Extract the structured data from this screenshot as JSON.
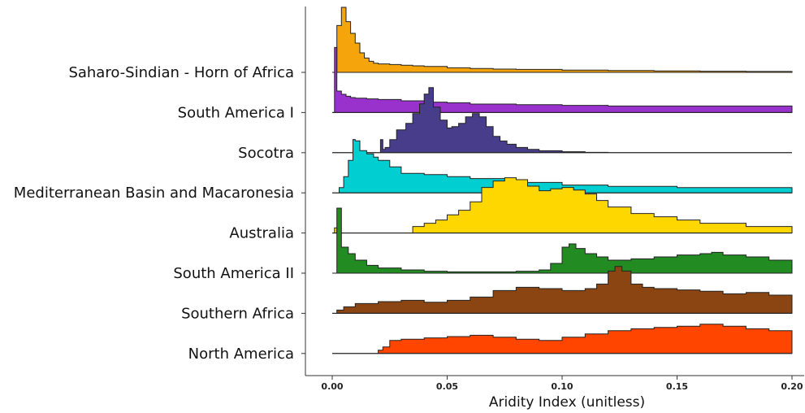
{
  "chart_data": {
    "type": "ridgeline",
    "title": "",
    "xlabel": "Aridity Index (unitless)",
    "ylabel": "",
    "xlim": [
      0.0,
      0.2
    ],
    "x_ticks": [
      {
        "value": 0.0,
        "label": "0.00"
      },
      {
        "value": 0.05,
        "label": "0.05"
      },
      {
        "value": 0.1,
        "label": "0.10"
      },
      {
        "value": 0.15,
        "label": "0.15"
      },
      {
        "value": 0.2,
        "label": "0.20"
      }
    ],
    "grid": false,
    "legend": "none",
    "series": [
      {
        "name": "Saharo-Sindian - Horn of Africa",
        "color": "#F5A40B",
        "x": [
          0.0,
          0.002,
          0.004,
          0.006,
          0.008,
          0.01,
          0.012,
          0.014,
          0.016,
          0.018,
          0.02,
          0.025,
          0.03,
          0.035,
          0.04,
          0.05,
          0.06,
          0.07,
          0.08,
          0.1,
          0.12,
          0.14,
          0.16,
          0.18,
          0.2
        ],
        "y": [
          0.0,
          0.72,
          1.0,
          0.78,
          0.6,
          0.45,
          0.3,
          0.22,
          0.17,
          0.14,
          0.13,
          0.12,
          0.11,
          0.1,
          0.09,
          0.07,
          0.06,
          0.05,
          0.045,
          0.035,
          0.028,
          0.022,
          0.018,
          0.014,
          0.012
        ]
      },
      {
        "name": "South America I",
        "color": "#9932CC",
        "x": [
          0.0,
          0.001,
          0.002,
          0.004,
          0.006,
          0.008,
          0.01,
          0.015,
          0.02,
          0.03,
          0.04,
          0.05,
          0.06,
          0.08,
          0.1,
          0.12,
          0.14,
          0.16,
          0.18,
          0.2
        ],
        "y": [
          0.0,
          1.0,
          0.33,
          0.28,
          0.25,
          0.23,
          0.22,
          0.21,
          0.2,
          0.18,
          0.16,
          0.15,
          0.13,
          0.12,
          0.11,
          0.1,
          0.1,
          0.1,
          0.1,
          0.1
        ]
      },
      {
        "name": "Socotra",
        "color": "#483D8B",
        "x": [
          0.0,
          0.02,
          0.021,
          0.022,
          0.023,
          0.025,
          0.028,
          0.032,
          0.035,
          0.038,
          0.04,
          0.042,
          0.044,
          0.047,
          0.05,
          0.052,
          0.055,
          0.058,
          0.061,
          0.064,
          0.067,
          0.07,
          0.073,
          0.076,
          0.08,
          0.085,
          0.09,
          0.1,
          0.11,
          0.12,
          0.2
        ],
        "y": [
          0.0,
          0.0,
          0.2,
          0.05,
          0.08,
          0.2,
          0.35,
          0.45,
          0.6,
          0.75,
          0.9,
          1.0,
          0.7,
          0.5,
          0.38,
          0.4,
          0.45,
          0.55,
          0.6,
          0.55,
          0.4,
          0.25,
          0.18,
          0.13,
          0.08,
          0.05,
          0.03,
          0.015,
          0.005,
          0.0,
          0.0
        ]
      },
      {
        "name": "Mediterranean Basin and Macaronesia",
        "color": "#00CED1",
        "x": [
          0.0,
          0.003,
          0.005,
          0.007,
          0.009,
          0.01,
          0.012,
          0.015,
          0.018,
          0.02,
          0.025,
          0.03,
          0.04,
          0.05,
          0.06,
          0.08,
          0.1,
          0.12,
          0.15,
          0.2
        ],
        "y": [
          0.0,
          0.08,
          0.25,
          0.5,
          0.82,
          0.8,
          0.65,
          0.6,
          0.55,
          0.5,
          0.4,
          0.3,
          0.28,
          0.25,
          0.22,
          0.16,
          0.12,
          0.1,
          0.08,
          0.07
        ]
      },
      {
        "name": "Australia",
        "color": "#FFD700",
        "x": [
          0.0,
          0.001,
          0.002,
          0.01,
          0.02,
          0.03,
          0.035,
          0.04,
          0.045,
          0.05,
          0.055,
          0.06,
          0.065,
          0.07,
          0.075,
          0.08,
          0.085,
          0.09,
          0.095,
          0.1,
          0.105,
          0.11,
          0.115,
          0.12,
          0.13,
          0.14,
          0.15,
          0.16,
          0.18,
          0.2
        ],
        "y": [
          0.0,
          0.08,
          0.0,
          0.0,
          0.0,
          0.0,
          0.1,
          0.15,
          0.2,
          0.28,
          0.35,
          0.48,
          0.7,
          0.8,
          0.85,
          0.82,
          0.72,
          0.65,
          0.68,
          0.7,
          0.66,
          0.6,
          0.5,
          0.4,
          0.3,
          0.25,
          0.2,
          0.15,
          0.1,
          0.08
        ]
      },
      {
        "name": "South America II",
        "color": "#228B22",
        "x": [
          0.0,
          0.002,
          0.004,
          0.007,
          0.01,
          0.015,
          0.02,
          0.03,
          0.04,
          0.05,
          0.06,
          0.07,
          0.08,
          0.09,
          0.095,
          0.1,
          0.103,
          0.106,
          0.11,
          0.115,
          0.12,
          0.13,
          0.14,
          0.15,
          0.16,
          0.165,
          0.17,
          0.18,
          0.19,
          0.2
        ],
        "y": [
          0.0,
          1.0,
          0.4,
          0.3,
          0.2,
          0.12,
          0.08,
          0.05,
          0.03,
          0.02,
          0.02,
          0.02,
          0.03,
          0.05,
          0.15,
          0.4,
          0.45,
          0.38,
          0.3,
          0.25,
          0.2,
          0.22,
          0.25,
          0.28,
          0.3,
          0.32,
          0.28,
          0.25,
          0.2,
          0.18
        ]
      },
      {
        "name": "Southern Africa",
        "color": "#8B4513",
        "x": [
          0.0,
          0.002,
          0.005,
          0.01,
          0.02,
          0.03,
          0.04,
          0.05,
          0.06,
          0.07,
          0.08,
          0.09,
          0.1,
          0.11,
          0.115,
          0.12,
          0.123,
          0.126,
          0.13,
          0.135,
          0.14,
          0.15,
          0.16,
          0.17,
          0.18,
          0.19,
          0.2
        ],
        "y": [
          0.0,
          0.05,
          0.1,
          0.15,
          0.18,
          0.2,
          0.17,
          0.2,
          0.25,
          0.35,
          0.4,
          0.38,
          0.35,
          0.38,
          0.45,
          0.65,
          0.72,
          0.65,
          0.45,
          0.4,
          0.38,
          0.36,
          0.34,
          0.3,
          0.32,
          0.28,
          0.25
        ]
      },
      {
        "name": "North America",
        "color": "#FF4500",
        "x": [
          0.0,
          0.015,
          0.02,
          0.022,
          0.025,
          0.03,
          0.04,
          0.05,
          0.06,
          0.07,
          0.08,
          0.09,
          0.1,
          0.11,
          0.12,
          0.13,
          0.14,
          0.15,
          0.16,
          0.17,
          0.18,
          0.19,
          0.2
        ],
        "y": [
          0.0,
          0.0,
          0.05,
          0.1,
          0.2,
          0.22,
          0.24,
          0.26,
          0.28,
          0.25,
          0.22,
          0.2,
          0.25,
          0.3,
          0.35,
          0.38,
          0.4,
          0.42,
          0.45,
          0.42,
          0.38,
          0.35,
          0.32
        ]
      }
    ]
  }
}
